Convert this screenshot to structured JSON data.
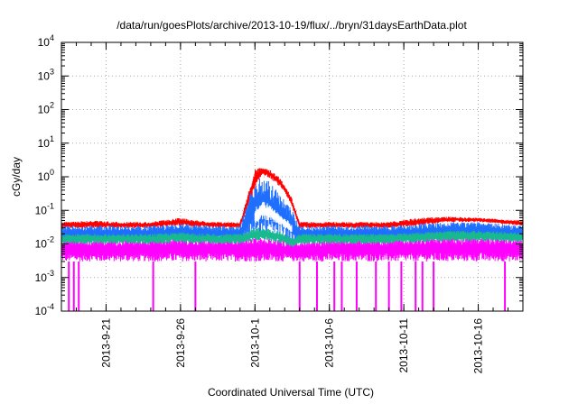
{
  "chart_data": {
    "type": "line",
    "title": "/data/run/goesPlots/archive/2013-10-19/flux/../bryn/31daysEarthData.plot",
    "xlabel": "Coordinated Universal Time (UTC)",
    "ylabel": "cGy/day",
    "yscale": "log",
    "ylim": [
      0.0001,
      10000
    ],
    "xlim": [
      "2013-09-18",
      "2013-10-19"
    ],
    "grid": true,
    "y_ticks": [
      {
        "value": 0.0001,
        "base": "10",
        "exp": "-4"
      },
      {
        "value": 0.001,
        "base": "10",
        "exp": "-3"
      },
      {
        "value": 0.01,
        "base": "10",
        "exp": "-2"
      },
      {
        "value": 0.1,
        "base": "10",
        "exp": "-1"
      },
      {
        "value": 1,
        "base": "10",
        "exp": "0"
      },
      {
        "value": 10,
        "base": "10",
        "exp": "1"
      },
      {
        "value": 100,
        "base": "10",
        "exp": "2"
      },
      {
        "value": 1000,
        "base": "10",
        "exp": "3"
      },
      {
        "value": 10000,
        "base": "10",
        "exp": "4"
      }
    ],
    "x_ticks": [
      "2013-9-21",
      "2013-9-26",
      "2013-10-1",
      "2013-10-6",
      "2013-10-11",
      "2013-10-16"
    ],
    "x_tick_dates": [
      "2013-09-21",
      "2013-09-26",
      "2013-10-01",
      "2013-10-06",
      "2013-10-11",
      "2013-10-16"
    ],
    "colors": {
      "red": "#ff0000",
      "blue": "#1f6fff",
      "white": "#ffffff",
      "teal": "#19b98f",
      "magenta": "#ff00ff"
    },
    "series": [
      {
        "color": "#ff0000",
        "x": [
          "2013-09-18",
          "2013-09-20",
          "2013-09-22",
          "2013-09-24",
          "2013-09-26",
          "2013-09-28",
          "2013-09-30",
          "2013-10-01",
          "2013-10-01T12:00",
          "2013-10-02",
          "2013-10-02T12:00",
          "2013-10-03",
          "2013-10-03T12:00",
          "2013-10-04",
          "2013-10-06",
          "2013-10-08",
          "2013-10-10",
          "2013-10-12",
          "2013-10-14",
          "2013-10-16",
          "2013-10-19"
        ],
        "y_low": [
          0.03,
          0.03,
          0.03,
          0.03,
          0.035,
          0.03,
          0.03,
          0.4,
          1.2,
          0.9,
          0.6,
          0.35,
          0.12,
          0.03,
          0.03,
          0.03,
          0.03,
          0.035,
          0.045,
          0.045,
          0.035
        ],
        "y_high": [
          0.045,
          0.05,
          0.045,
          0.045,
          0.06,
          0.045,
          0.045,
          1.7,
          1.9,
          1.6,
          1.1,
          0.6,
          0.22,
          0.045,
          0.045,
          0.045,
          0.045,
          0.06,
          0.065,
          0.06,
          0.05
        ]
      },
      {
        "color": "#1f6fff",
        "x": [
          "2013-09-18",
          "2013-09-20",
          "2013-09-22",
          "2013-09-24",
          "2013-09-26",
          "2013-09-28",
          "2013-09-30",
          "2013-10-01",
          "2013-10-01T12:00",
          "2013-10-02",
          "2013-10-02T12:00",
          "2013-10-03",
          "2013-10-03T12:00",
          "2013-10-04",
          "2013-10-06",
          "2013-10-08",
          "2013-10-10",
          "2013-10-12",
          "2013-10-14",
          "2013-10-16",
          "2013-10-19"
        ],
        "y_low": [
          0.012,
          0.012,
          0.012,
          0.012,
          0.013,
          0.012,
          0.012,
          0.02,
          0.02,
          0.02,
          0.02,
          0.015,
          0.01,
          0.012,
          0.012,
          0.012,
          0.012,
          0.013,
          0.015,
          0.015,
          0.013
        ],
        "y_high": [
          0.035,
          0.035,
          0.035,
          0.035,
          0.04,
          0.035,
          0.035,
          0.9,
          1.0,
          0.7,
          0.4,
          0.2,
          0.1,
          0.035,
          0.035,
          0.035,
          0.035,
          0.04,
          0.045,
          0.045,
          0.035
        ]
      },
      {
        "color": "#ffffff",
        "x": [
          "2013-10-01",
          "2013-10-01T12:00",
          "2013-10-02",
          "2013-10-02T12:00",
          "2013-10-03",
          "2013-10-03T12:00"
        ],
        "y_low": [
          0.04,
          0.05,
          0.05,
          0.04,
          0.03,
          0.02
        ],
        "y_high": [
          0.12,
          0.2,
          0.15,
          0.09,
          0.06,
          0.04
        ]
      },
      {
        "color": "#19b98f",
        "x": [
          "2013-09-18",
          "2013-09-20",
          "2013-09-22",
          "2013-09-24",
          "2013-09-26",
          "2013-09-28",
          "2013-09-30",
          "2013-10-01",
          "2013-10-01T12:00",
          "2013-10-02",
          "2013-10-02T12:00",
          "2013-10-03",
          "2013-10-03T12:00",
          "2013-10-04",
          "2013-10-06",
          "2013-10-08",
          "2013-10-10",
          "2013-10-12",
          "2013-10-14",
          "2013-10-16",
          "2013-10-19"
        ],
        "y_low": [
          0.01,
          0.01,
          0.01,
          0.01,
          0.011,
          0.01,
          0.01,
          0.012,
          0.013,
          0.012,
          0.011,
          0.01,
          0.008,
          0.01,
          0.01,
          0.01,
          0.01,
          0.011,
          0.012,
          0.012,
          0.011
        ],
        "y_high": [
          0.02,
          0.02,
          0.02,
          0.02,
          0.022,
          0.02,
          0.02,
          0.03,
          0.032,
          0.028,
          0.025,
          0.02,
          0.015,
          0.02,
          0.02,
          0.02,
          0.02,
          0.022,
          0.025,
          0.025,
          0.022
        ]
      },
      {
        "color": "#ff00ff",
        "x": [
          "2013-09-18",
          "2013-09-20",
          "2013-09-22",
          "2013-09-24",
          "2013-09-26",
          "2013-09-28",
          "2013-09-30",
          "2013-10-02",
          "2013-10-04",
          "2013-10-06",
          "2013-10-08",
          "2013-10-10",
          "2013-10-12",
          "2013-10-14",
          "2013-10-16",
          "2013-10-19"
        ],
        "y_low": [
          0.003,
          0.003,
          0.003,
          0.003,
          0.003,
          0.003,
          0.003,
          0.003,
          0.003,
          0.003,
          0.003,
          0.003,
          0.003,
          0.003,
          0.003,
          0.003
        ],
        "y_high": [
          0.015,
          0.015,
          0.015,
          0.015,
          0.016,
          0.015,
          0.015,
          0.015,
          0.012,
          0.015,
          0.015,
          0.015,
          0.016,
          0.017,
          0.017,
          0.016
        ],
        "dropouts": [
          "2013-09-18T12:00",
          "2013-09-18T20:00",
          "2013-09-19T04:00",
          "2013-09-24T04:00",
          "2013-09-27T00:00",
          "2013-10-04T00:00",
          "2013-10-05T04:00",
          "2013-10-06T08:00",
          "2013-10-06T20:00",
          "2013-10-07T20:00",
          "2013-10-09T03:00",
          "2013-10-10T00:00",
          "2013-10-10T20:00",
          "2013-10-11T19:00",
          "2013-10-12T06:00",
          "2013-10-13T00:00",
          "2013-10-17T19:00"
        ]
      }
    ]
  }
}
